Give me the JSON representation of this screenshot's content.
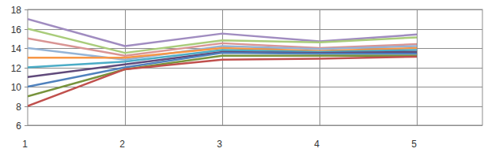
{
  "chart_data": {
    "type": "line",
    "categories": [
      "1",
      "2",
      "3",
      "4",
      "5"
    ],
    "series": [
      {
        "color": "#a08cc0",
        "values": [
          17,
          14.2,
          15.5,
          14.7,
          15.4
        ]
      },
      {
        "color": "#a9cc7a",
        "values": [
          16,
          13.5,
          14.8,
          14.6,
          15.1
        ]
      },
      {
        "color": "#d99594",
        "values": [
          15,
          13.2,
          14.5,
          14.0,
          14.4
        ]
      },
      {
        "color": "#94b3d6",
        "values": [
          14,
          12.8,
          14.2,
          13.9,
          14.2
        ]
      },
      {
        "color": "#f79646",
        "values": [
          13,
          13.0,
          14.0,
          13.7,
          14.0
        ]
      },
      {
        "color": "#4bacc6",
        "values": [
          12,
          12.6,
          13.8,
          13.6,
          13.8
        ]
      },
      {
        "color": "#604a7b",
        "values": [
          11,
          12.3,
          13.6,
          13.5,
          13.6
        ]
      },
      {
        "color": "#4f81bd",
        "values": [
          10,
          12.0,
          13.5,
          13.4,
          13.4
        ]
      },
      {
        "color": "#77933c",
        "values": [
          9,
          11.8,
          13.2,
          13.2,
          13.2
        ]
      },
      {
        "color": "#c0504d",
        "values": [
          8,
          11.8,
          12.8,
          12.9,
          13.1
        ]
      }
    ],
    "ylim": [
      6,
      18
    ],
    "yticks": [
      6,
      8,
      10,
      12,
      14,
      16,
      18
    ],
    "grid": true
  }
}
